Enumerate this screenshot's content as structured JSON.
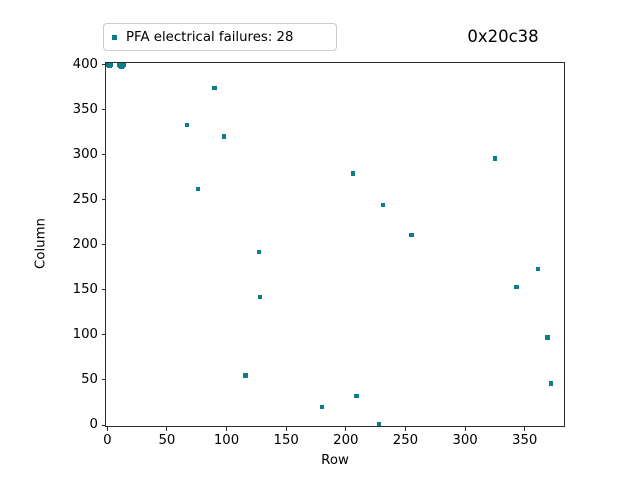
{
  "title": "0x20c38",
  "legend": {
    "label": "PFA electrical failures: 28",
    "marker_color": "#0d7d87"
  },
  "chart_data": {
    "type": "scatter",
    "title": "0x20c38",
    "xlabel": "Row",
    "ylabel": "Column",
    "xlim": [
      0,
      384
    ],
    "ylim": [
      0,
      400
    ],
    "xticks": [
      0,
      50,
      100,
      150,
      200,
      250,
      300,
      350
    ],
    "yticks": [
      0,
      50,
      100,
      150,
      200,
      250,
      300,
      350,
      400
    ],
    "grid": false,
    "legend_entries": [
      "PFA electrical failures: 28"
    ],
    "legend_position": "upper left, outside plot",
    "marker": "square",
    "marker_color": "#0d7d87",
    "num_points": 28,
    "points": [
      [
        0,
        400
      ],
      [
        1,
        400
      ],
      [
        2,
        399
      ],
      [
        3,
        400
      ],
      [
        10,
        400
      ],
      [
        11,
        399
      ],
      [
        12,
        400
      ],
      [
        12,
        398
      ],
      [
        13,
        399
      ],
      [
        14,
        400
      ],
      [
        67,
        333
      ],
      [
        76,
        262
      ],
      [
        90,
        374
      ],
      [
        98,
        320
      ],
      [
        116,
        55
      ],
      [
        127,
        192
      ],
      [
        128,
        142
      ],
      [
        180,
        20
      ],
      [
        206,
        279
      ],
      [
        209,
        32
      ],
      [
        228,
        1
      ],
      [
        231,
        244
      ],
      [
        255,
        211
      ],
      [
        325,
        296
      ],
      [
        343,
        153
      ],
      [
        361,
        173
      ],
      [
        369,
        97
      ],
      [
        372,
        46
      ]
    ]
  }
}
